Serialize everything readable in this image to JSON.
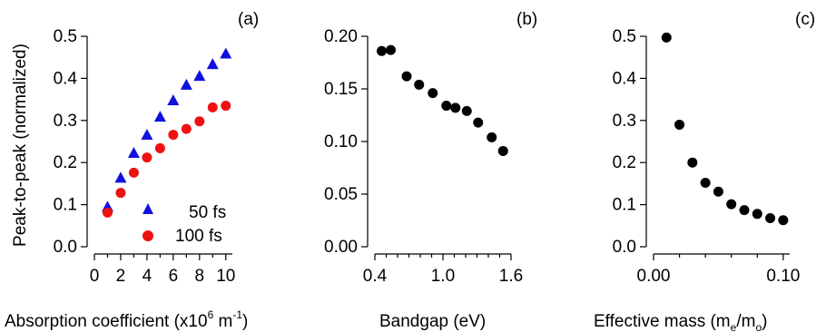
{
  "chart_data": [
    {
      "type": "scatter",
      "panel_label": "(a)",
      "ylabel": "Peak-to-peak (normalized)",
      "xlabel_pre": "Absorption coefficient (x10",
      "xlabel_sup": "6",
      "xlabel_mid": " m",
      "xlabel_sup2": "-1",
      "xlabel_post": ")",
      "xlim": [
        0,
        10.5
      ],
      "ylim": [
        0,
        0.5
      ],
      "xticks": [
        "0",
        "2",
        "4",
        "6",
        "8",
        "10"
      ],
      "yticks": [
        "0.0",
        "0.1",
        "0.2",
        "0.3",
        "0.4",
        "0.5"
      ],
      "legend_position": "bottom-right",
      "series": [
        {
          "name": "50 fs",
          "marker": "triangle",
          "color": "#1010e0",
          "x": [
            1,
            2,
            3,
            4,
            5,
            6,
            7,
            8,
            9,
            10
          ],
          "y": [
            0.094,
            0.163,
            0.222,
            0.265,
            0.308,
            0.347,
            0.384,
            0.405,
            0.433,
            0.458
          ]
        },
        {
          "name": "100 fs",
          "marker": "circle",
          "color": "#ee1111",
          "x": [
            1,
            2,
            3,
            4,
            5,
            6,
            7,
            8,
            9,
            10
          ],
          "y": [
            0.081,
            0.128,
            0.176,
            0.212,
            0.234,
            0.266,
            0.28,
            0.298,
            0.331,
            0.335
          ]
        }
      ]
    },
    {
      "type": "scatter",
      "panel_label": "(b)",
      "xlabel": "Bandgap (eV)",
      "xlim": [
        0.4,
        1.6
      ],
      "ylim": [
        0,
        0.2
      ],
      "xticks": [
        "0.4",
        "1.0",
        "1.6"
      ],
      "yticks": [
        "0.00",
        "0.05",
        "0.10",
        "0.15",
        "0.20"
      ],
      "series": [
        {
          "marker": "circle",
          "color": "#000000",
          "x": [
            0.46,
            0.54,
            0.68,
            0.79,
            0.91,
            1.03,
            1.11,
            1.21,
            1.31,
            1.43,
            1.53
          ],
          "y": [
            0.186,
            0.187,
            0.162,
            0.154,
            0.146,
            0.134,
            0.132,
            0.129,
            0.118,
            0.104,
            0.091
          ]
        }
      ]
    },
    {
      "type": "scatter",
      "panel_label": "(c)",
      "xlabel_pre": "Effective mass (m",
      "xlabel_sub": "e",
      "xlabel_mid": "/m",
      "xlabel_sub2": "o",
      "xlabel_post": ")",
      "xlim": [
        0,
        0.105
      ],
      "ylim": [
        0,
        0.5
      ],
      "xticks": [
        "0.00",
        "0.10"
      ],
      "yticks": [
        "0.0",
        "0.1",
        "0.2",
        "0.3",
        "0.4",
        "0.5"
      ],
      "series": [
        {
          "marker": "circle",
          "color": "#000000",
          "x": [
            0.01,
            0.02,
            0.03,
            0.04,
            0.05,
            0.06,
            0.07,
            0.08,
            0.09,
            0.1
          ],
          "y": [
            0.497,
            0.29,
            0.2,
            0.152,
            0.131,
            0.101,
            0.087,
            0.078,
            0.068,
            0.063
          ]
        }
      ]
    }
  ]
}
